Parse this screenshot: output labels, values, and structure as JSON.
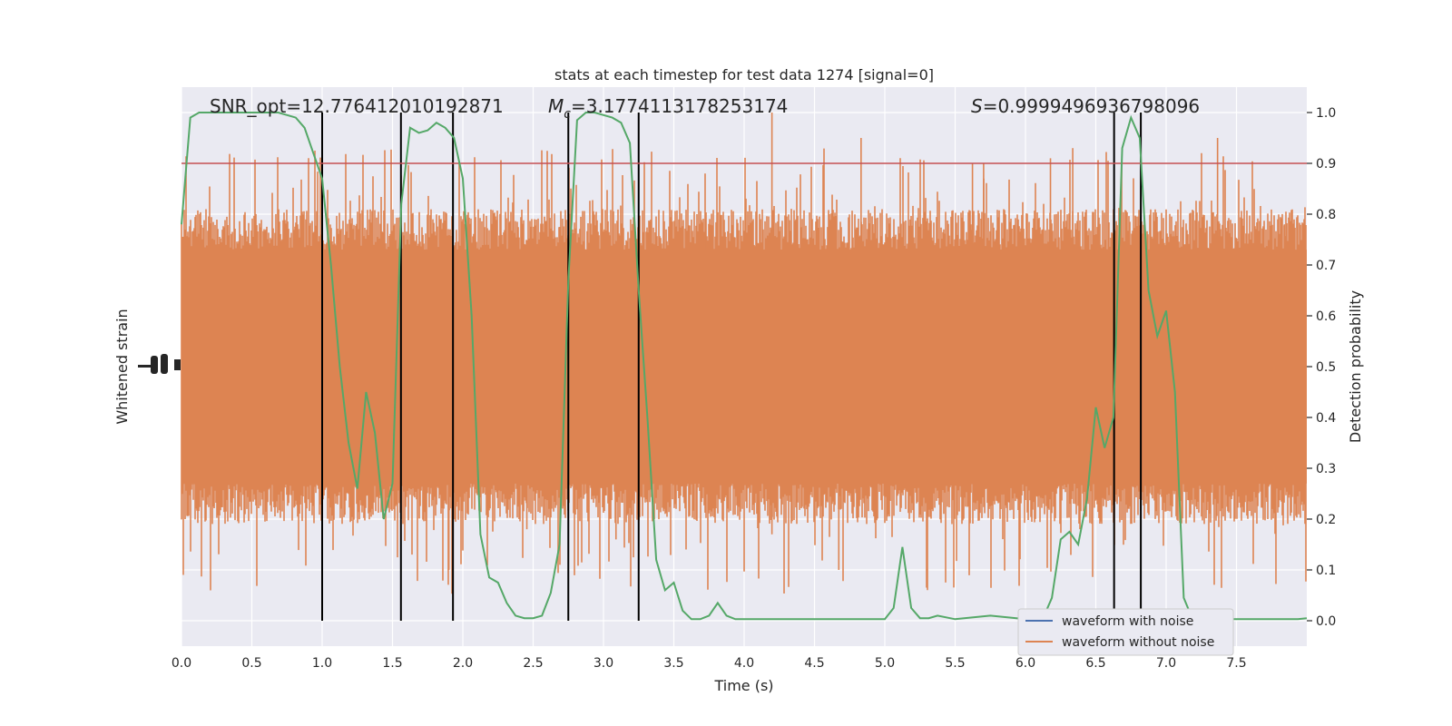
{
  "chart_data": {
    "type": "line",
    "title": "stats at each timestep for test data 1274 [signal=0]",
    "xlabel": "Time (s)",
    "ylabel_left": "Whitened strain",
    "ylabel_right": "Detection probability",
    "xlim": [
      0,
      8
    ],
    "ylim_right": [
      -0.05,
      1.05
    ],
    "x_ticks": [
      "0.0",
      "0.5",
      "1.0",
      "1.5",
      "2.0",
      "2.5",
      "3.0",
      "3.5",
      "4.0",
      "4.5",
      "5.0",
      "5.5",
      "6.0",
      "6.5",
      "7.0",
      "7.5"
    ],
    "y_right_ticks": [
      "0.0",
      "0.1",
      "0.2",
      "0.3",
      "0.4",
      "0.5",
      "0.6",
      "0.7",
      "0.8",
      "0.9",
      "1.0"
    ],
    "annotations": {
      "snr": "SNR_opt=12.776412010192871",
      "mc_symbol": "M",
      "mc_sub": "c",
      "mc_value": "=3.1774113178253174",
      "s_symbol": "S",
      "s_value": "=0.9999496936798096"
    },
    "legend": {
      "placement": "lower-right",
      "entries": [
        {
          "label": "waveform with noise",
          "color": "#4c72b0"
        },
        {
          "label": "waveform without noise",
          "color": "#dd8452"
        }
      ]
    },
    "threshold": {
      "value": 0.9,
      "color": "#c44e52"
    },
    "vertical_lines": [
      1.0,
      1.56,
      1.93,
      2.75,
      3.25,
      6.63,
      6.82
    ],
    "noise_series": {
      "color": "#dd8452",
      "band": [
        0.27,
        0.73
      ],
      "extremes": [
        0.0,
        1.0
      ]
    },
    "probability_series": {
      "color": "#55a868",
      "x": [
        0.0,
        0.0625,
        0.125,
        0.1875,
        0.25,
        0.3125,
        0.375,
        0.4375,
        0.5,
        0.5625,
        0.625,
        0.6875,
        0.75,
        0.8125,
        0.875,
        0.9375,
        1.0,
        1.0625,
        1.125,
        1.1875,
        1.25,
        1.3125,
        1.375,
        1.4375,
        1.5,
        1.5625,
        1.625,
        1.6875,
        1.75,
        1.8125,
        1.875,
        1.9375,
        2.0,
        2.0625,
        2.125,
        2.1875,
        2.25,
        2.3125,
        2.375,
        2.4375,
        2.5,
        2.5625,
        2.625,
        2.6875,
        2.75,
        2.8125,
        2.875,
        2.9375,
        3.0,
        3.0625,
        3.125,
        3.1875,
        3.25,
        3.3125,
        3.375,
        3.4375,
        3.5,
        3.5625,
        3.625,
        3.6875,
        3.75,
        3.8125,
        3.875,
        3.9375,
        4.0,
        4.5,
        5.0,
        5.0625,
        5.125,
        5.1875,
        5.25,
        5.3125,
        5.375,
        5.5,
        5.75,
        6.0,
        6.125,
        6.1875,
        6.25,
        6.3125,
        6.375,
        6.4375,
        6.5,
        6.5625,
        6.625,
        6.6875,
        6.75,
        6.8125,
        6.875,
        6.9375,
        7.0,
        7.0625,
        7.125,
        7.1875,
        7.5,
        7.9375,
        8.0
      ],
      "y": [
        0.78,
        0.99,
        1.0,
        1.0,
        1.0,
        1.0,
        1.0,
        1.0,
        1.0,
        1.0,
        1.0,
        1.0,
        0.995,
        0.99,
        0.97,
        0.92,
        0.87,
        0.7,
        0.5,
        0.35,
        0.26,
        0.45,
        0.37,
        0.2,
        0.27,
        0.82,
        0.97,
        0.96,
        0.965,
        0.98,
        0.97,
        0.95,
        0.87,
        0.6,
        0.17,
        0.085,
        0.075,
        0.035,
        0.01,
        0.005,
        0.005,
        0.01,
        0.055,
        0.15,
        0.67,
        0.985,
        1.0,
        1.0,
        0.995,
        0.99,
        0.98,
        0.94,
        0.65,
        0.4,
        0.12,
        0.06,
        0.075,
        0.02,
        0.003,
        0.003,
        0.01,
        0.035,
        0.01,
        0.003,
        0.003,
        0.003,
        0.003,
        0.025,
        0.145,
        0.025,
        0.005,
        0.005,
        0.01,
        0.003,
        0.01,
        0.003,
        0.005,
        0.045,
        0.16,
        0.175,
        0.15,
        0.24,
        0.42,
        0.34,
        0.4,
        0.93,
        0.99,
        0.95,
        0.65,
        0.56,
        0.61,
        0.45,
        0.045,
        0.003,
        0.003,
        0.003,
        0.005
      ]
    }
  }
}
